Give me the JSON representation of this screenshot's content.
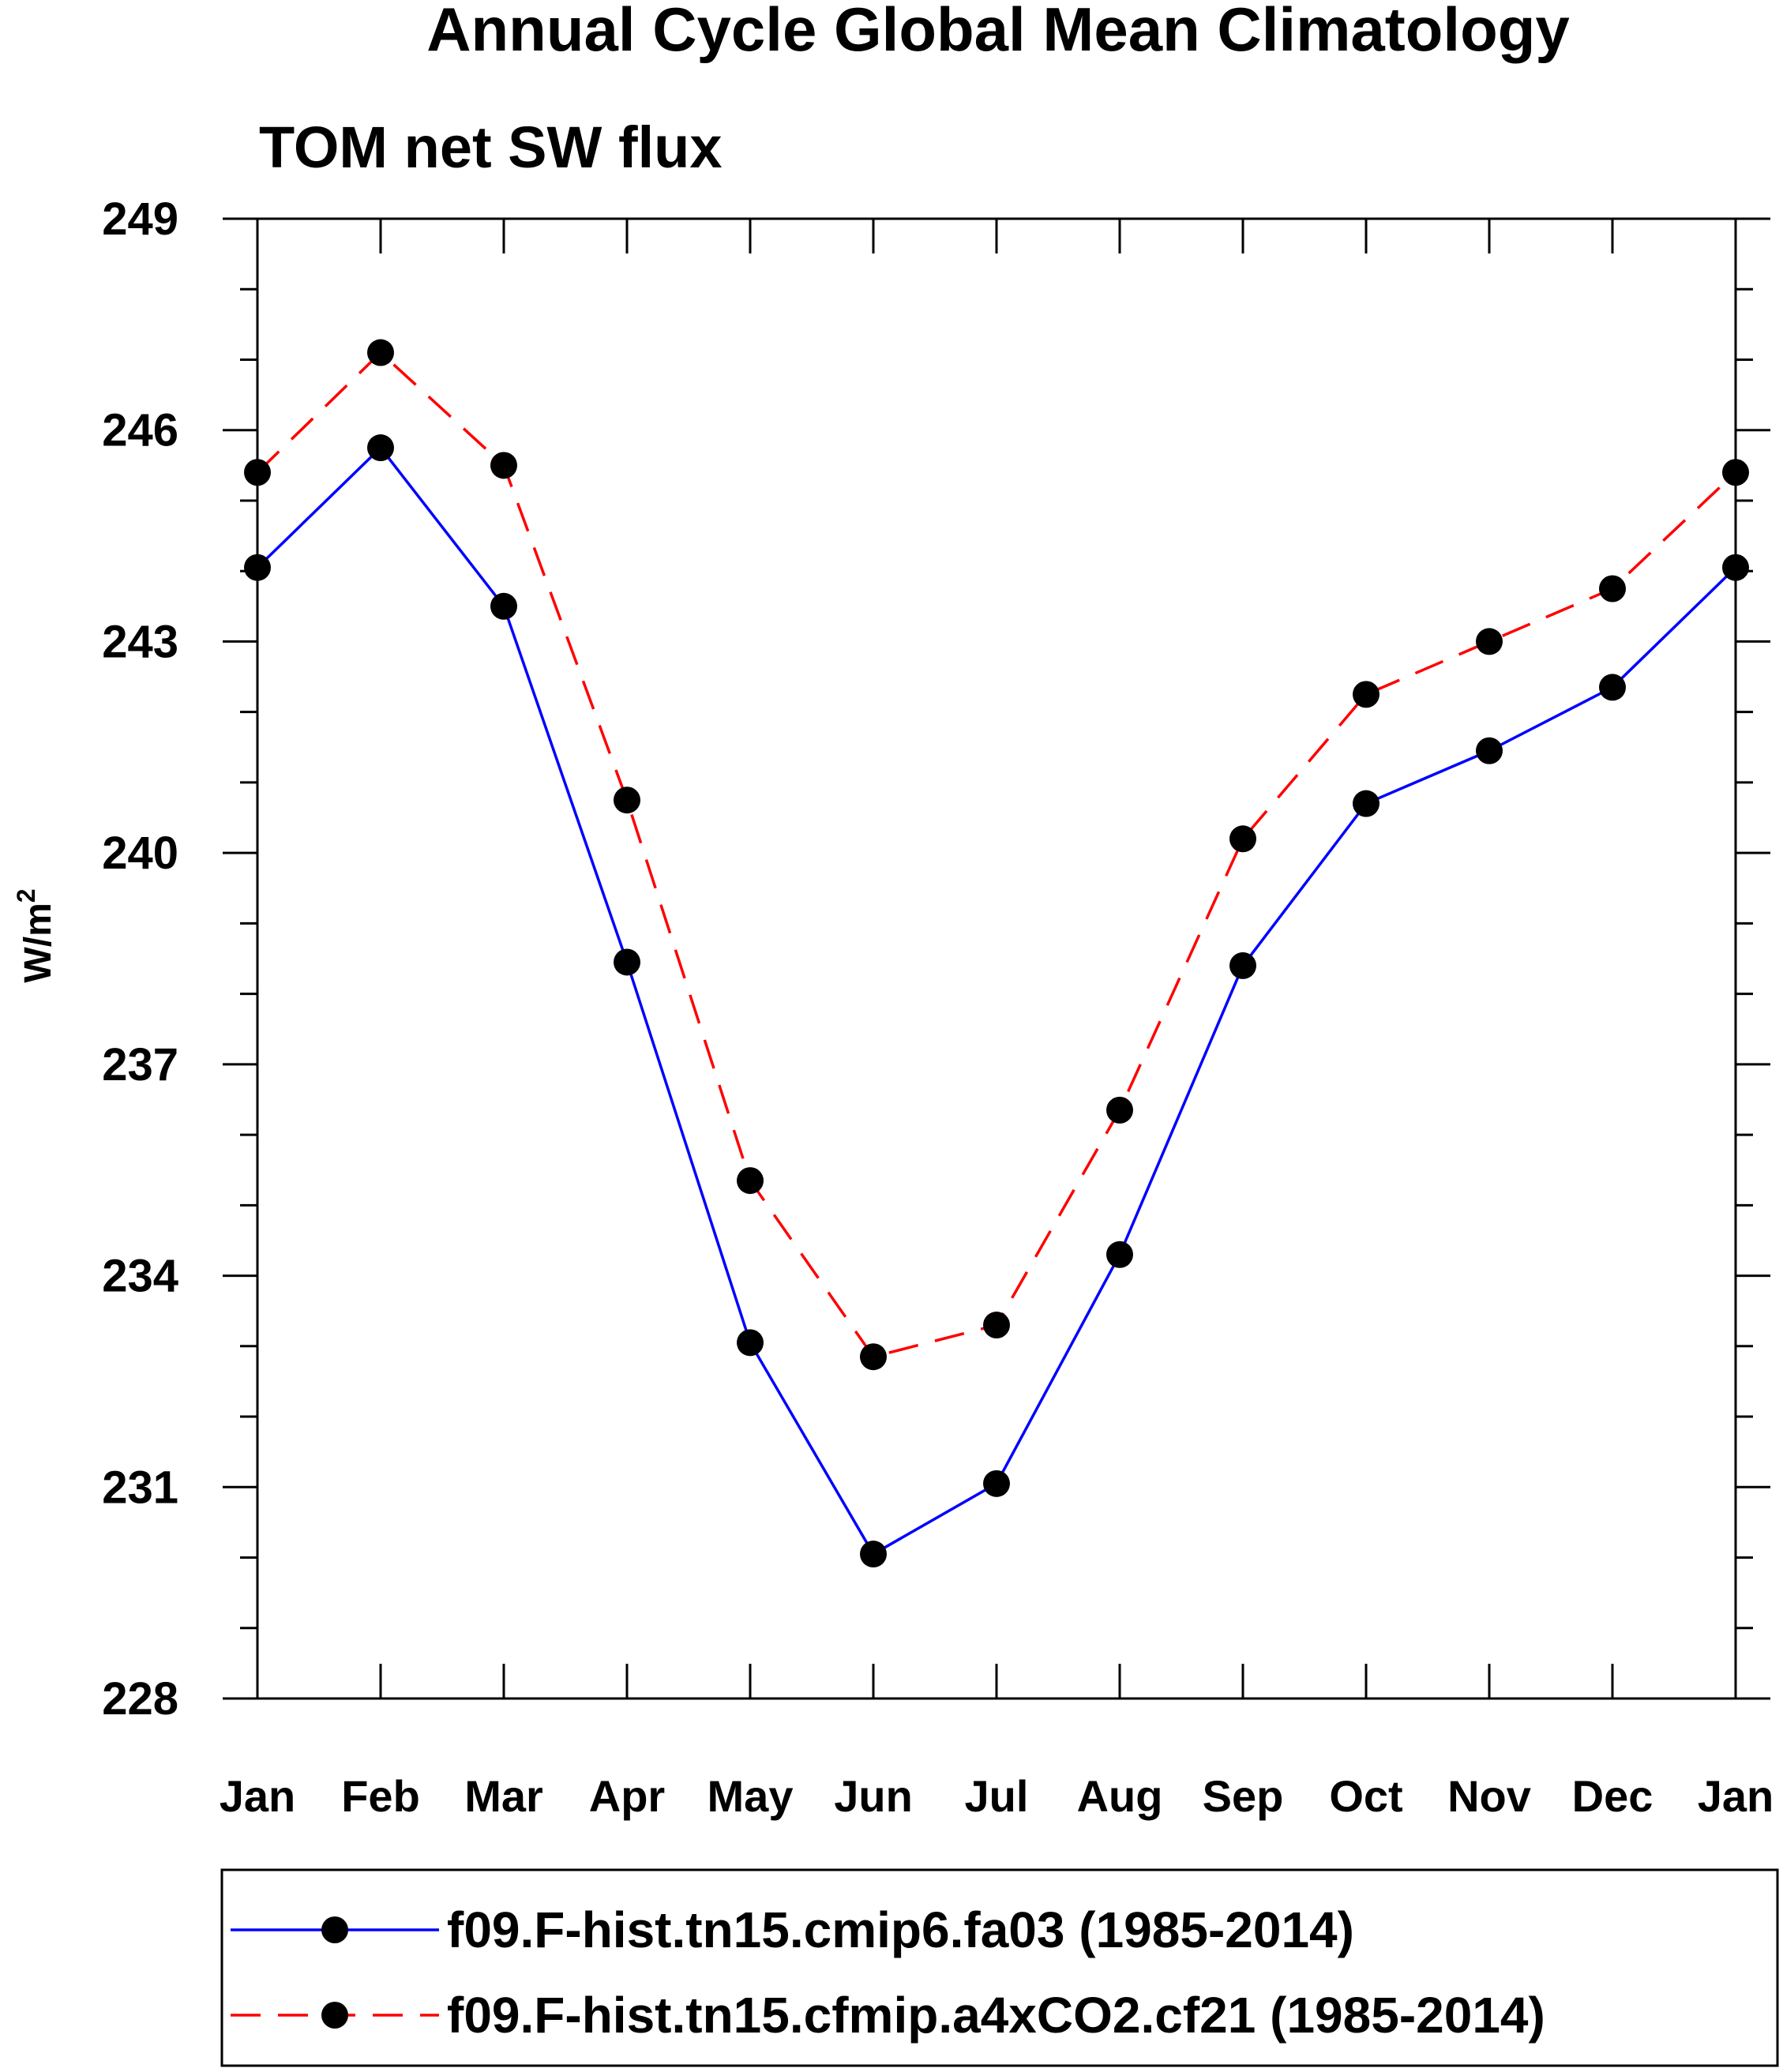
{
  "chart_data": {
    "type": "line",
    "title": "Annual Cycle Global Mean Climatology",
    "subtitle": "TOM net SW flux",
    "ylabel_main": "W/m",
    "ylabel_sup": "2",
    "xlabel": "",
    "categories": [
      "Jan",
      "Feb",
      "Mar",
      "Apr",
      "May",
      "Jun",
      "Jul",
      "Aug",
      "Sep",
      "Oct",
      "Nov",
      "Dec",
      "Jan"
    ],
    "ylim": [
      228,
      249
    ],
    "yticks": [
      "228",
      "231",
      "234",
      "237",
      "240",
      "243",
      "246",
      "249"
    ],
    "grid": false,
    "legend_position": "bottom",
    "series": [
      {
        "name": "f09.F-hist.tn15.cmip6.fa03 (1985-2014)",
        "color": "#0000ff",
        "dash": "solid",
        "marker": "filled-circle",
        "values": [
          244.05,
          245.75,
          243.5,
          238.45,
          233.05,
          230.05,
          231.05,
          234.3,
          238.4,
          240.7,
          241.45,
          242.35,
          244.05
        ]
      },
      {
        "name": "f09.F-hist.tn15.cfmip.a4xCO2.cf21 (1985-2014)",
        "color": "#ff0000",
        "dash": "dashed",
        "marker": "filled-circle",
        "values": [
          245.4,
          247.1,
          245.5,
          240.75,
          235.35,
          232.85,
          233.3,
          236.35,
          240.2,
          242.25,
          243.0,
          243.75,
          245.4
        ]
      }
    ]
  }
}
